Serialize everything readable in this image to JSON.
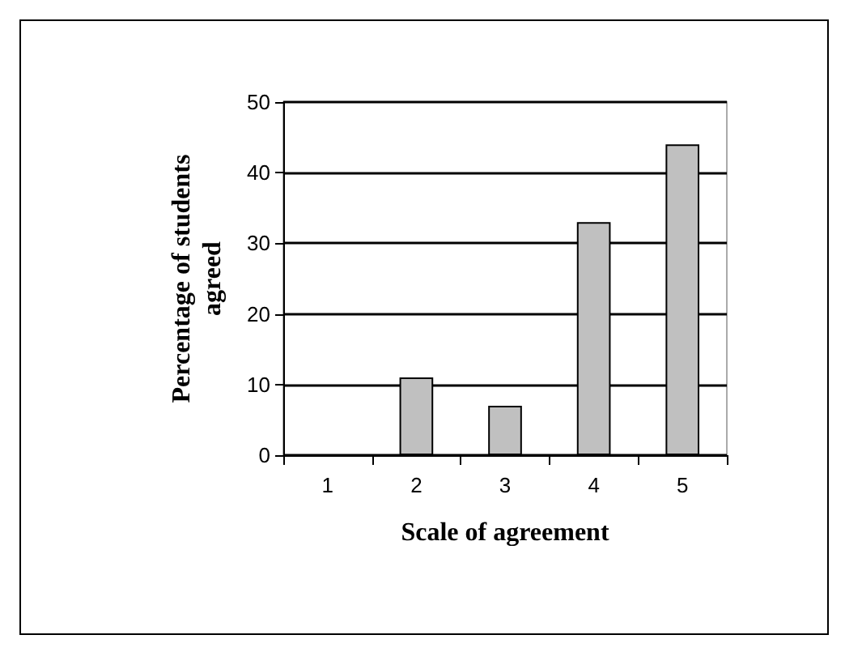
{
  "chart_data": {
    "type": "bar",
    "xlabel": "Scale of agreement",
    "ylabel": "Percentage of students\nagreed",
    "categories": [
      "1",
      "2",
      "3",
      "4",
      "5"
    ],
    "values": [
      0,
      11,
      7,
      33,
      44
    ],
    "color": "#c0c0c0",
    "ylim": [
      0,
      50
    ],
    "yticks": [
      0,
      10,
      20,
      30,
      40,
      50
    ],
    "grid": "y"
  }
}
